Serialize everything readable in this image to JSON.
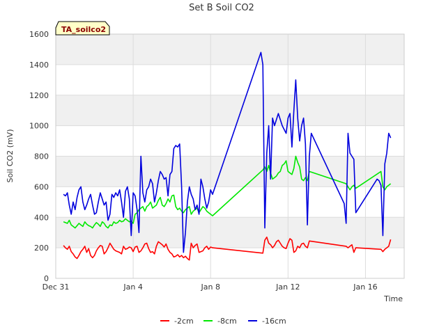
{
  "chart_data": {
    "type": "line",
    "title": "Set B Soil CO2",
    "badge": "TA_soilco2",
    "xlabel": "Time",
    "ylabel": "Soil CO2 (mV)",
    "xlim": [
      0,
      18
    ],
    "ylim": [
      0,
      1600
    ],
    "yticks": [
      0,
      200,
      400,
      600,
      800,
      1000,
      1200,
      1400,
      1600
    ],
    "xticks": [
      {
        "value": 0,
        "label": "Dec 31"
      },
      {
        "value": 4,
        "label": "Jan 4"
      },
      {
        "value": 8,
        "label": "Jan 8"
      },
      {
        "value": 12,
        "label": "Jan 12"
      },
      {
        "value": 16,
        "label": "Jan 16"
      }
    ],
    "series": [
      {
        "name": "-2cm",
        "color": "#ff0000",
        "x": [
          0.4,
          0.5,
          0.6,
          0.7,
          0.8,
          0.9,
          1.0,
          1.1,
          1.2,
          1.3,
          1.4,
          1.5,
          1.6,
          1.7,
          1.8,
          1.9,
          2.0,
          2.1,
          2.2,
          2.3,
          2.4,
          2.5,
          2.6,
          2.7,
          2.8,
          2.9,
          3.0,
          3.1,
          3.2,
          3.3,
          3.4,
          3.5,
          3.6,
          3.7,
          3.8,
          3.9,
          4.0,
          4.1,
          4.2,
          4.3,
          4.4,
          4.5,
          4.6,
          4.7,
          4.8,
          4.9,
          5.0,
          5.1,
          5.2,
          5.3,
          5.4,
          5.5,
          5.6,
          5.7,
          5.8,
          5.9,
          6.0,
          6.1,
          6.2,
          6.3,
          6.4,
          6.5,
          6.6,
          6.7,
          6.8,
          6.9,
          7.0,
          7.1,
          7.2,
          7.3,
          7.4,
          7.5,
          7.6,
          7.7,
          7.8,
          7.9,
          8.0,
          8.1,
          10.7,
          10.8,
          10.9,
          11.0,
          11.1,
          11.2,
          11.3,
          11.4,
          11.5,
          11.6,
          11.7,
          11.8,
          11.9,
          12.0,
          12.1,
          12.2,
          12.3,
          12.4,
          12.5,
          12.6,
          12.7,
          12.8,
          12.9,
          13.0,
          13.1,
          15.0,
          15.1,
          15.2,
          15.3,
          15.4,
          15.5,
          16.8,
          16.9,
          17.0,
          17.1,
          17.2,
          17.3
        ],
        "values": [
          215,
          200,
          190,
          210,
          175,
          160,
          140,
          130,
          150,
          175,
          190,
          210,
          170,
          195,
          150,
          135,
          150,
          180,
          200,
          215,
          210,
          160,
          175,
          200,
          230,
          210,
          190,
          180,
          175,
          170,
          160,
          210,
          190,
          195,
          205,
          200,
          175,
          205,
          210,
          170,
          180,
          200,
          225,
          230,
          195,
          170,
          175,
          160,
          210,
          240,
          230,
          220,
          205,
          225,
          190,
          170,
          160,
          140,
          145,
          155,
          140,
          150,
          135,
          145,
          130,
          120,
          230,
          200,
          215,
          225,
          170,
          175,
          180,
          200,
          210,
          190,
          205,
          200,
          165,
          250,
          270,
          230,
          220,
          200,
          215,
          240,
          250,
          230,
          210,
          200,
          195,
          230,
          260,
          250,
          170,
          180,
          210,
          200,
          225,
          230,
          210,
          200,
          245,
          210,
          200,
          210,
          220,
          170,
          200,
          190,
          175,
          190,
          200,
          210,
          255
        ]
      },
      {
        "name": "-8cm",
        "color": "#00e800",
        "x": [
          0.4,
          0.5,
          0.6,
          0.7,
          0.8,
          0.9,
          1.0,
          1.1,
          1.2,
          1.3,
          1.4,
          1.5,
          1.6,
          1.7,
          1.8,
          1.9,
          2.0,
          2.1,
          2.2,
          2.3,
          2.4,
          2.5,
          2.6,
          2.7,
          2.8,
          2.9,
          3.0,
          3.1,
          3.2,
          3.3,
          3.4,
          3.5,
          3.6,
          3.7,
          3.8,
          3.9,
          4.0,
          4.1,
          4.2,
          4.3,
          4.4,
          4.5,
          4.6,
          4.7,
          4.8,
          4.9,
          5.0,
          5.1,
          5.2,
          5.3,
          5.4,
          5.5,
          5.6,
          5.7,
          5.8,
          5.9,
          6.0,
          6.1,
          6.2,
          6.3,
          6.4,
          6.5,
          6.6,
          6.7,
          6.8,
          6.9,
          7.0,
          7.1,
          7.2,
          7.3,
          7.4,
          7.5,
          7.6,
          7.7,
          7.8,
          7.9,
          8.0,
          8.1,
          10.7,
          10.8,
          10.9,
          11.0,
          11.1,
          11.2,
          11.3,
          11.4,
          11.5,
          11.6,
          11.7,
          11.8,
          11.9,
          12.0,
          12.1,
          12.2,
          12.3,
          12.4,
          12.5,
          12.6,
          12.7,
          12.8,
          12.9,
          13.0,
          13.1,
          15.0,
          15.1,
          15.2,
          15.3,
          15.4,
          15.5,
          16.8,
          16.9,
          17.0,
          17.1,
          17.2,
          17.3
        ],
        "values": [
          370,
          365,
          360,
          380,
          350,
          340,
          330,
          345,
          360,
          350,
          340,
          370,
          355,
          345,
          340,
          330,
          350,
          365,
          355,
          340,
          370,
          360,
          340,
          330,
          350,
          345,
          370,
          360,
          365,
          380,
          370,
          375,
          390,
          380,
          370,
          375,
          360,
          420,
          430,
          450,
          460,
          470,
          440,
          470,
          480,
          500,
          460,
          470,
          480,
          510,
          530,
          480,
          470,
          490,
          520,
          500,
          540,
          545,
          470,
          450,
          460,
          440,
          430,
          450,
          460,
          470,
          420,
          440,
          450,
          460,
          430,
          450,
          470,
          460,
          440,
          430,
          420,
          410,
          710,
          730,
          700,
          740,
          690,
          650,
          660,
          670,
          690,
          700,
          740,
          750,
          770,
          700,
          690,
          680,
          720,
          800,
          760,
          730,
          650,
          640,
          660,
          640,
          700,
          620,
          600,
          580,
          600,
          610,
          590,
          700,
          600,
          580,
          600,
          610,
          620
        ]
      },
      {
        "name": "-16cm",
        "color": "#0000dd",
        "x": [
          0.4,
          0.5,
          0.6,
          0.7,
          0.8,
          0.9,
          1.0,
          1.1,
          1.2,
          1.3,
          1.4,
          1.5,
          1.6,
          1.7,
          1.8,
          1.9,
          2.0,
          2.1,
          2.2,
          2.3,
          2.4,
          2.5,
          2.6,
          2.7,
          2.8,
          2.9,
          3.0,
          3.1,
          3.2,
          3.3,
          3.4,
          3.5,
          3.6,
          3.7,
          3.8,
          3.9,
          4.0,
          4.1,
          4.2,
          4.3,
          4.4,
          4.5,
          4.6,
          4.7,
          4.8,
          4.9,
          5.0,
          5.1,
          5.2,
          5.3,
          5.4,
          5.5,
          5.6,
          5.7,
          5.8,
          5.9,
          6.0,
          6.1,
          6.2,
          6.3,
          6.4,
          6.5,
          6.6,
          6.7,
          6.8,
          6.9,
          7.0,
          7.1,
          7.2,
          7.3,
          7.4,
          7.5,
          7.6,
          7.7,
          7.8,
          7.9,
          8.0,
          8.1,
          10.6,
          10.7,
          10.8,
          10.9,
          11.0,
          11.1,
          11.2,
          11.3,
          11.5,
          11.7,
          11.9,
          12.0,
          12.1,
          12.2,
          12.3,
          12.4,
          12.5,
          12.6,
          12.7,
          12.8,
          12.9,
          13.0,
          13.1,
          13.2,
          14.9,
          15.0,
          15.1,
          15.2,
          15.3,
          15.4,
          15.5,
          16.6,
          16.7,
          16.8,
          16.9,
          17.0,
          17.1,
          17.2,
          17.3
        ],
        "values": [
          550,
          540,
          560,
          480,
          420,
          500,
          450,
          530,
          580,
          600,
          500,
          450,
          480,
          520,
          550,
          480,
          420,
          430,
          500,
          560,
          520,
          480,
          500,
          380,
          420,
          550,
          530,
          560,
          540,
          580,
          500,
          400,
          570,
          600,
          520,
          280,
          560,
          540,
          450,
          300,
          800,
          560,
          500,
          580,
          600,
          650,
          620,
          500,
          560,
          640,
          700,
          680,
          650,
          660,
          540,
          680,
          700,
          850,
          870,
          860,
          880,
          600,
          170,
          300,
          500,
          600,
          550,
          520,
          450,
          480,
          420,
          650,
          600,
          520,
          460,
          500,
          580,
          550,
          1480,
          1400,
          330,
          820,
          1000,
          650,
          1050,
          1000,
          1080,
          1000,
          950,
          1050,
          1080,
          860,
          1100,
          1300,
          1050,
          900,
          1000,
          1050,
          880,
          350,
          800,
          950,
          490,
          360,
          950,
          820,
          800,
          780,
          430,
          650,
          640,
          610,
          280,
          750,
          820,
          950,
          920
        ]
      }
    ]
  }
}
